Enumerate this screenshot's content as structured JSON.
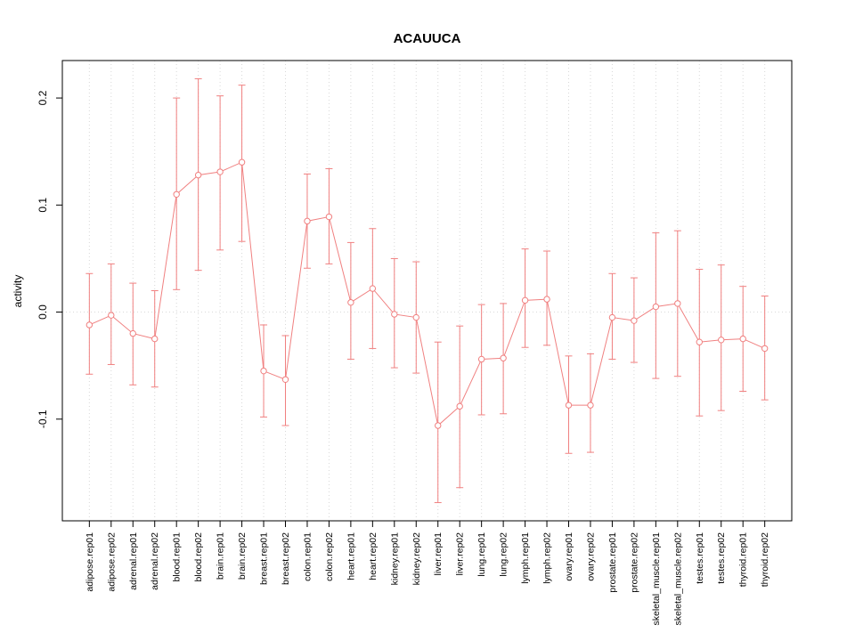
{
  "chart_data": {
    "type": "line",
    "title": "ACAUUCA",
    "xlabel": "",
    "ylabel": "activity",
    "ylim": [
      -0.195,
      0.235
    ],
    "yticks": [
      -0.1,
      0.0,
      0.1,
      0.2
    ],
    "grid": {
      "vertical": "dotted line at every category",
      "horizontal": "dotted line at y=0"
    },
    "legend": "none",
    "colors": {
      "series": "#f08080",
      "grid": "#d8d8d8",
      "axis": "#000000",
      "background": "#ffffff"
    },
    "categories": [
      "adipose.rep01",
      "adipose.rep02",
      "adrenal.rep01",
      "adrenal.rep02",
      "blood.rep01",
      "blood.rep02",
      "brain.rep01",
      "brain.rep02",
      "breast.rep01",
      "breast.rep02",
      "colon.rep01",
      "colon.rep02",
      "heart.rep01",
      "heart.rep02",
      "kidney.rep01",
      "kidney.rep02",
      "liver.rep01",
      "liver.rep02",
      "lung.rep01",
      "lung.rep02",
      "lymph.rep01",
      "lymph.rep02",
      "ovary.rep01",
      "ovary.rep02",
      "prostate.rep01",
      "prostate.rep02",
      "skeletal_muscle.rep01",
      "skeletal_muscle.rep02",
      "testes.rep01",
      "testes.rep02",
      "thyroid.rep01",
      "thyroid.rep02"
    ],
    "series": [
      {
        "name": "activity",
        "values": [
          -0.012,
          -0.003,
          -0.02,
          -0.025,
          0.11,
          0.128,
          0.131,
          0.14,
          -0.055,
          -0.063,
          0.085,
          0.089,
          0.009,
          0.022,
          -0.002,
          -0.005,
          -0.106,
          -0.088,
          -0.044,
          -0.043,
          0.011,
          0.012,
          -0.087,
          -0.087,
          -0.005,
          -0.008,
          0.005,
          0.008,
          -0.028,
          -0.026,
          -0.025,
          -0.034
        ],
        "lower": [
          -0.058,
          -0.049,
          -0.068,
          -0.07,
          0.021,
          0.039,
          0.058,
          0.066,
          -0.098,
          -0.106,
          0.041,
          0.045,
          -0.044,
          -0.034,
          -0.052,
          -0.057,
          -0.178,
          -0.164,
          -0.096,
          -0.095,
          -0.033,
          -0.031,
          -0.132,
          -0.131,
          -0.044,
          -0.047,
          -0.062,
          -0.06,
          -0.097,
          -0.092,
          -0.074,
          -0.082
        ],
        "upper": [
          0.036,
          0.045,
          0.027,
          0.02,
          0.2,
          0.218,
          0.202,
          0.212,
          -0.012,
          -0.022,
          0.129,
          0.134,
          0.065,
          0.078,
          0.05,
          0.047,
          -0.028,
          -0.013,
          0.007,
          0.008,
          0.059,
          0.057,
          -0.041,
          -0.039,
          0.036,
          0.032,
          0.074,
          0.076,
          0.04,
          0.044,
          0.024,
          0.015
        ]
      }
    ]
  }
}
